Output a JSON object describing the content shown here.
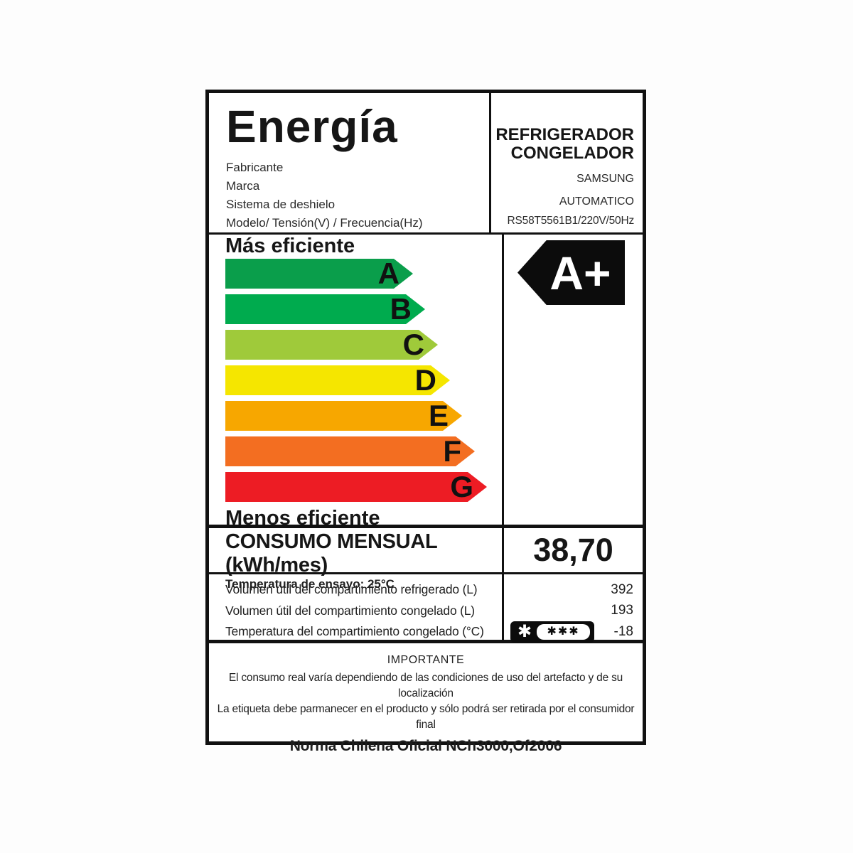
{
  "label": {
    "title": "Energía",
    "fields": [
      "Fabricante",
      "Marca",
      "Sistema de deshielo",
      "Modelo/ Tensión(V) / Frecuencia(Hz)"
    ],
    "product": {
      "type_line1": "REFRIGERADOR",
      "type_line2": "CONGELADOR",
      "manufacturer": "SAMSUNG",
      "defrost_system": "AUTOMATICO",
      "model_voltage_frequency": "RS58T5561B1/220V/50Hz"
    },
    "scale": {
      "more_efficient": "Más eficiente",
      "less_efficient": "Menos eficiente",
      "bars": [
        {
          "letter": "A",
          "color": "#0a9e4b"
        },
        {
          "letter": "B",
          "color": "#00ab4e"
        },
        {
          "letter": "C",
          "color": "#9fca3a"
        },
        {
          "letter": "D",
          "color": "#f5e600"
        },
        {
          "letter": "E",
          "color": "#f7a700"
        },
        {
          "letter": "F",
          "color": "#f36e21"
        },
        {
          "letter": "G",
          "color": "#ed1c24"
        }
      ],
      "rating": "A+",
      "rating_bg": "#0c0c0c",
      "rating_text_color": "#ffffff"
    },
    "consumption": {
      "title": "CONSUMO MENSUAL (kWh/mes)",
      "subtitle": "Temperatura de ensayo: 25°C",
      "value": "38,70"
    },
    "details": {
      "rows": [
        {
          "label": "Volumen útil del compartimiento refrigerado (L)",
          "value": "392"
        },
        {
          "label": "Volumen útil del compartimiento congelado (L)",
          "value": "193"
        },
        {
          "label": "Temperatura del compartimiento congelado (°C)",
          "value": "-18"
        }
      ],
      "freezer_star_single": "✱",
      "freezer_star_triple": "✱✱✱"
    },
    "footer": {
      "heading": "IMPORTANTE",
      "line1": "El consumo real varía dependiendo de las condiciones de uso del artefacto y de su localización",
      "line2": "La etiqueta debe parmanecer en el producto y sólo podrá ser retirada por el consumidor final",
      "norm": "Norma Chilena Oficial NCh3000,Of2006"
    }
  }
}
